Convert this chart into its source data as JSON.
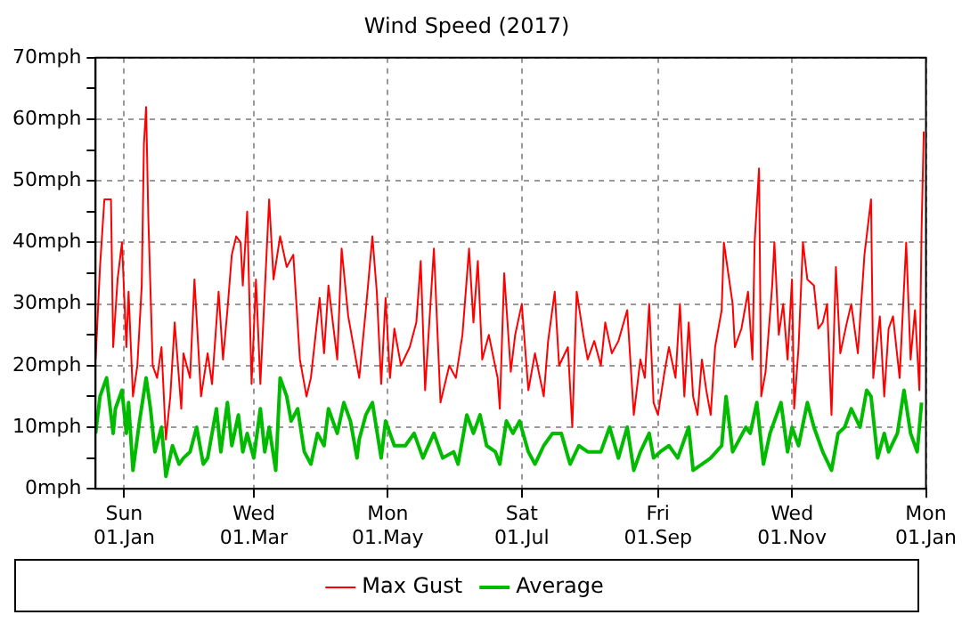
{
  "chart_data": {
    "type": "line",
    "title": "Wind Speed (2017)",
    "xlim": [
      "2016-12-19",
      "2018-01-01"
    ],
    "xticks": [
      {
        "value": "2017-01-01",
        "label": "Sun\n01.Jan"
      },
      {
        "value": "2017-03-01",
        "label": "Wed\n01.Mar"
      },
      {
        "value": "2017-05-01",
        "label": "Mon\n01.May"
      },
      {
        "value": "2017-07-01",
        "label": "Sat\n01.Jul"
      },
      {
        "value": "2017-09-01",
        "label": "Fri\n01.Sep"
      },
      {
        "value": "2017-11-01",
        "label": "Wed\n01.Nov"
      },
      {
        "value": "2018-01-01",
        "label": "Mon\n01.Jan"
      }
    ],
    "ylim": [
      0,
      70
    ],
    "yticks": [
      {
        "value": 0,
        "label": "0mph"
      },
      {
        "value": 5,
        "label": null
      },
      {
        "value": 10,
        "label": "10mph"
      },
      {
        "value": 15,
        "label": null
      },
      {
        "value": 20,
        "label": "20mph"
      },
      {
        "value": 25,
        "label": null
      },
      {
        "value": 30,
        "label": "30mph"
      },
      {
        "value": 35,
        "label": null
      },
      {
        "value": 40,
        "label": "40mph"
      },
      {
        "value": 45,
        "label": null
      },
      {
        "value": 50,
        "label": "50mph"
      },
      {
        "value": 55,
        "label": null
      },
      {
        "value": 60,
        "label": "60mph"
      },
      {
        "value": 65,
        "label": null
      },
      {
        "value": 70,
        "label": "70mph"
      }
    ],
    "grid": true,
    "legend": "bottom",
    "marker": "none",
    "line_style": "solid",
    "series": [
      {
        "name": "Max Gust",
        "color": "#ff0000",
        "x": [
          "2016-12-19",
          "2016-12-21",
          "2016-12-23",
          "2016-12-26",
          "2016-12-27",
          "2016-12-29",
          "2016-12-31",
          "2017-01-02",
          "2017-01-03",
          "2017-01-05",
          "2017-01-07",
          "2017-01-09",
          "2017-01-10",
          "2017-01-11",
          "2017-01-12",
          "2017-01-14",
          "2017-01-16",
          "2017-01-18",
          "2017-01-20",
          "2017-01-22",
          "2017-01-24",
          "2017-01-27",
          "2017-01-28",
          "2017-01-31",
          "2017-02-02",
          "2017-02-05",
          "2017-02-08",
          "2017-02-10",
          "2017-02-13",
          "2017-02-15",
          "2017-02-17",
          "2017-02-19",
          "2017-02-21",
          "2017-02-23",
          "2017-02-24",
          "2017-02-26",
          "2017-02-28",
          "2017-03-02",
          "2017-03-04",
          "2017-03-08",
          "2017-03-10",
          "2017-03-13",
          "2017-03-16",
          "2017-03-19",
          "2017-03-22",
          "2017-03-25",
          "2017-03-27",
          "2017-03-31",
          "2017-04-02",
          "2017-04-04",
          "2017-04-08",
          "2017-04-10",
          "2017-04-13",
          "2017-04-16",
          "2017-04-18",
          "2017-04-21",
          "2017-04-24",
          "2017-04-26",
          "2017-04-28",
          "2017-04-30",
          "2017-05-02",
          "2017-05-04",
          "2017-05-07",
          "2017-05-11",
          "2017-05-14",
          "2017-05-16",
          "2017-05-18",
          "2017-05-22",
          "2017-05-25",
          "2017-05-29",
          "2017-06-01",
          "2017-06-04",
          "2017-06-07",
          "2017-06-09",
          "2017-06-11",
          "2017-06-13",
          "2017-06-16",
          "2017-06-20",
          "2017-06-21",
          "2017-06-23",
          "2017-06-26",
          "2017-06-28",
          "2017-07-01",
          "2017-07-04",
          "2017-07-07",
          "2017-07-11",
          "2017-07-13",
          "2017-07-16",
          "2017-07-18",
          "2017-07-22",
          "2017-07-24",
          "2017-07-26",
          "2017-07-29",
          "2017-07-31",
          "2017-08-03",
          "2017-08-06",
          "2017-08-08",
          "2017-08-11",
          "2017-08-14",
          "2017-08-18",
          "2017-08-21",
          "2017-08-24",
          "2017-08-26",
          "2017-08-28",
          "2017-08-30",
          "2017-09-01",
          "2017-09-04",
          "2017-09-06",
          "2017-09-09",
          "2017-09-11",
          "2017-09-13",
          "2017-09-15",
          "2017-09-17",
          "2017-09-19",
          "2017-09-21",
          "2017-09-23",
          "2017-09-25",
          "2017-09-27",
          "2017-09-30",
          "2017-10-01",
          "2017-10-03",
          "2017-10-05",
          "2017-10-06",
          "2017-10-09",
          "2017-10-12",
          "2017-10-14",
          "2017-10-15",
          "2017-10-17",
          "2017-10-18",
          "2017-10-20",
          "2017-10-23",
          "2017-10-24",
          "2017-10-26",
          "2017-10-28",
          "2017-10-30",
          "2017-11-01",
          "2017-11-02",
          "2017-11-04",
          "2017-11-06",
          "2017-11-08",
          "2017-11-11",
          "2017-11-13",
          "2017-11-15",
          "2017-11-17",
          "2017-11-19",
          "2017-11-21",
          "2017-11-23",
          "2017-11-26",
          "2017-11-28",
          "2017-12-01",
          "2017-12-04",
          "2017-12-07",
          "2017-12-08",
          "2017-12-11",
          "2017-12-13",
          "2017-12-15",
          "2017-12-17",
          "2017-12-20",
          "2017-12-23",
          "2017-12-25",
          "2017-12-27",
          "2017-12-29",
          "2017-12-30",
          "2017-12-31"
        ],
        "values": [
          21,
          36,
          47,
          47,
          23,
          34,
          40,
          23,
          32,
          15,
          20,
          33,
          56,
          62,
          44,
          20,
          18,
          23,
          8,
          15,
          27,
          13,
          22,
          18,
          34,
          15,
          22,
          17,
          32,
          21,
          29,
          38,
          41,
          40,
          33,
          45,
          17,
          34,
          17,
          47,
          34,
          41,
          36,
          38,
          21,
          15,
          18,
          31,
          22,
          33,
          21,
          39,
          28,
          22,
          18,
          29,
          41,
          32,
          17,
          31,
          18,
          26,
          20,
          23,
          27,
          37,
          16,
          39,
          14,
          20,
          18,
          25,
          39,
          27,
          37,
          21,
          25,
          18,
          13,
          35,
          19,
          25,
          30,
          16,
          22,
          15,
          24,
          32,
          20,
          23,
          10,
          32,
          25,
          21,
          24,
          20,
          27,
          22,
          24,
          29,
          12,
          21,
          18,
          30,
          14,
          12,
          19,
          23,
          18,
          30,
          15,
          27,
          15,
          12,
          21,
          16,
          12,
          23,
          29,
          40,
          35,
          30,
          23,
          26,
          32,
          21,
          40,
          52,
          15,
          19,
          33,
          40,
          25,
          30,
          21,
          34,
          13,
          23,
          40,
          34,
          33,
          26,
          27,
          30,
          12,
          36,
          22,
          27,
          30,
          22,
          38,
          47,
          18,
          28,
          15,
          26,
          28,
          18,
          40,
          21,
          29,
          16,
          42,
          58
        ]
      },
      {
        "name": "Average",
        "color": "#00bb00",
        "x": [
          "2016-12-19",
          "2016-12-21",
          "2016-12-24",
          "2016-12-27",
          "2016-12-28",
          "2016-12-31",
          "2017-01-02",
          "2017-01-03",
          "2017-01-05",
          "2017-01-08",
          "2017-01-11",
          "2017-01-13",
          "2017-01-15",
          "2017-01-18",
          "2017-01-20",
          "2017-01-23",
          "2017-01-26",
          "2017-01-28",
          "2017-01-31",
          "2017-02-03",
          "2017-02-06",
          "2017-02-08",
          "2017-02-12",
          "2017-02-14",
          "2017-02-17",
          "2017-02-19",
          "2017-02-22",
          "2017-02-24",
          "2017-02-26",
          "2017-03-01",
          "2017-03-04",
          "2017-03-06",
          "2017-03-08",
          "2017-03-11",
          "2017-03-13",
          "2017-03-16",
          "2017-03-18",
          "2017-03-21",
          "2017-03-24",
          "2017-03-27",
          "2017-03-30",
          "2017-04-02",
          "2017-04-04",
          "2017-04-08",
          "2017-04-11",
          "2017-04-14",
          "2017-04-17",
          "2017-04-18",
          "2017-04-21",
          "2017-04-24",
          "2017-04-28",
          "2017-04-30",
          "2017-05-04",
          "2017-05-09",
          "2017-05-13",
          "2017-05-17",
          "2017-05-22",
          "2017-05-26",
          "2017-05-31",
          "2017-06-02",
          "2017-06-06",
          "2017-06-09",
          "2017-06-12",
          "2017-06-15",
          "2017-06-19",
          "2017-06-21",
          "2017-06-24",
          "2017-06-27",
          "2017-06-30",
          "2017-07-04",
          "2017-07-07",
          "2017-07-11",
          "2017-07-15",
          "2017-07-19",
          "2017-07-23",
          "2017-07-27",
          "2017-07-31",
          "2017-08-06",
          "2017-08-10",
          "2017-08-14",
          "2017-08-18",
          "2017-08-21",
          "2017-08-24",
          "2017-08-28",
          "2017-08-30",
          "2017-09-02",
          "2017-09-06",
          "2017-09-10",
          "2017-09-15",
          "2017-09-17",
          "2017-09-21",
          "2017-09-25",
          "2017-09-30",
          "2017-10-02",
          "2017-10-05",
          "2017-10-08",
          "2017-10-11",
          "2017-10-13",
          "2017-10-16",
          "2017-10-19",
          "2017-10-22",
          "2017-10-24",
          "2017-10-27",
          "2017-10-30",
          "2017-11-01",
          "2017-11-04",
          "2017-11-08",
          "2017-11-11",
          "2017-11-15",
          "2017-11-19",
          "2017-11-22",
          "2017-11-25",
          "2017-11-28",
          "2017-12-02",
          "2017-12-05",
          "2017-12-07",
          "2017-12-10",
          "2017-12-13",
          "2017-12-15",
          "2017-12-19",
          "2017-12-22",
          "2017-12-25",
          "2017-12-28",
          "2017-12-30"
        ],
        "values": [
          9,
          15,
          18,
          9,
          13,
          16,
          9,
          14,
          3,
          11,
          18,
          13,
          6,
          10,
          2,
          7,
          4,
          5,
          6,
          10,
          4,
          5,
          13,
          6,
          14,
          7,
          12,
          6,
          9,
          5,
          13,
          6,
          10,
          3,
          18,
          15,
          11,
          13,
          6,
          4,
          9,
          7,
          13,
          9,
          14,
          11,
          5,
          8,
          12,
          14,
          5,
          11,
          7,
          7,
          9,
          5,
          9,
          5,
          6,
          4,
          12,
          9,
          12,
          7,
          6,
          4,
          11,
          9,
          11,
          6,
          4,
          7,
          9,
          9,
          4,
          7,
          6,
          6,
          10,
          5,
          10,
          3,
          6,
          9,
          5,
          6,
          7,
          5,
          10,
          3,
          4,
          5,
          7,
          15,
          6,
          8,
          10,
          9,
          14,
          4,
          9,
          11,
          14,
          6,
          10,
          7,
          14,
          10,
          6,
          3,
          9,
          10,
          13,
          10,
          16,
          15,
          5,
          9,
          6,
          9,
          16,
          9,
          6,
          14
        ]
      }
    ]
  }
}
